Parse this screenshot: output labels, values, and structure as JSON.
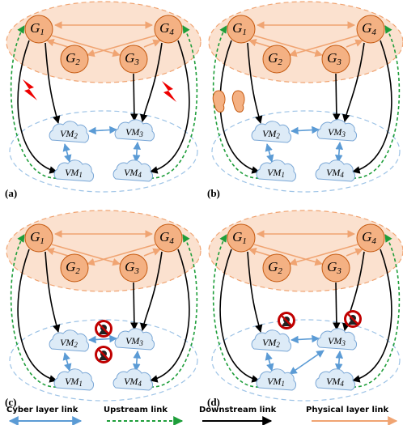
{
  "panels": [
    {
      "label": "(a)",
      "nodes": [
        {
          "base": "G",
          "sub": "1"
        },
        {
          "base": "G",
          "sub": "2"
        },
        {
          "base": "G",
          "sub": "3"
        },
        {
          "base": "G",
          "sub": "4"
        }
      ],
      "vms": [
        {
          "base": "VM",
          "sub": "1"
        },
        {
          "base": "VM",
          "sub": "2"
        },
        {
          "base": "VM",
          "sub": "3"
        },
        {
          "base": "VM",
          "sub": "4"
        }
      ]
    },
    {
      "label": "(b)",
      "nodes": [
        {
          "base": "G",
          "sub": "1"
        },
        {
          "base": "G",
          "sub": "2"
        },
        {
          "base": "G",
          "sub": "3"
        },
        {
          "base": "G",
          "sub": "4"
        }
      ],
      "vms": [
        {
          "base": "VM",
          "sub": "1"
        },
        {
          "base": "VM",
          "sub": "2"
        },
        {
          "base": "VM",
          "sub": "3"
        },
        {
          "base": "VM",
          "sub": "4"
        }
      ]
    },
    {
      "label": "(c)",
      "nodes": [
        {
          "base": "G",
          "sub": "1"
        },
        {
          "base": "G",
          "sub": "2"
        },
        {
          "base": "G",
          "sub": "3"
        },
        {
          "base": "G",
          "sub": "4"
        }
      ],
      "vms": [
        {
          "base": "VM",
          "sub": "1"
        },
        {
          "base": "VM",
          "sub": "2"
        },
        {
          "base": "VM",
          "sub": "3"
        },
        {
          "base": "VM",
          "sub": "4"
        }
      ]
    },
    {
      "label": "(d)",
      "nodes": [
        {
          "base": "G",
          "sub": "1"
        },
        {
          "base": "G",
          "sub": "2"
        },
        {
          "base": "G",
          "sub": "3"
        },
        {
          "base": "G",
          "sub": "4"
        }
      ],
      "vms": [
        {
          "base": "VM",
          "sub": "1"
        },
        {
          "base": "VM",
          "sub": "2"
        },
        {
          "base": "VM",
          "sub": "3"
        },
        {
          "base": "VM",
          "sub": "4"
        }
      ]
    }
  ],
  "legend": [
    "Cyber layer link",
    "Upstream  link",
    "Downstream  link",
    "Physical layer link"
  ]
}
